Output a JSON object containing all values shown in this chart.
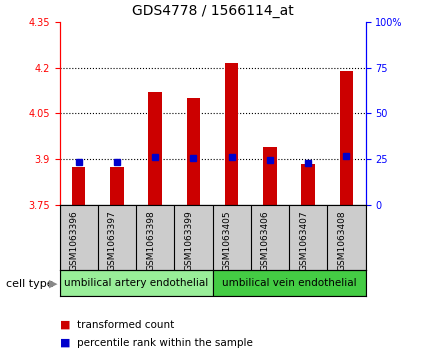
{
  "title": "GDS4778 / 1566114_at",
  "samples": [
    "GSM1063396",
    "GSM1063397",
    "GSM1063398",
    "GSM1063399",
    "GSM1063405",
    "GSM1063406",
    "GSM1063407",
    "GSM1063408"
  ],
  "red_values": [
    3.876,
    3.876,
    4.12,
    4.1,
    4.215,
    3.94,
    3.885,
    4.19
  ],
  "blue_values": [
    3.892,
    3.89,
    3.906,
    3.905,
    3.906,
    3.896,
    3.887,
    3.912
  ],
  "ylim_left": [
    3.75,
    4.35
  ],
  "ylim_right": [
    0,
    100
  ],
  "yticks_left": [
    3.75,
    3.9,
    4.05,
    4.2,
    4.35
  ],
  "yticks_right": [
    0,
    25,
    50,
    75,
    100
  ],
  "ytick_labels_right": [
    "0",
    "25",
    "50",
    "75",
    "100%"
  ],
  "cell_groups": [
    {
      "label": "umbilical artery endothelial",
      "start": 0,
      "end": 4,
      "color": "#99ee99"
    },
    {
      "label": "umbilical vein endothelial",
      "start": 4,
      "end": 8,
      "color": "#44cc44"
    }
  ],
  "cell_type_label": "cell type",
  "legend_red_label": "transformed count",
  "legend_blue_label": "percentile rank within the sample",
  "red_color": "#cc0000",
  "blue_color": "#0000cc",
  "bar_width": 0.35,
  "baseline": 3.75,
  "bg_plot": "#ffffff",
  "bg_label_area": "#cccccc",
  "title_fontsize": 10,
  "tick_fontsize": 7,
  "label_fontsize": 6.5
}
